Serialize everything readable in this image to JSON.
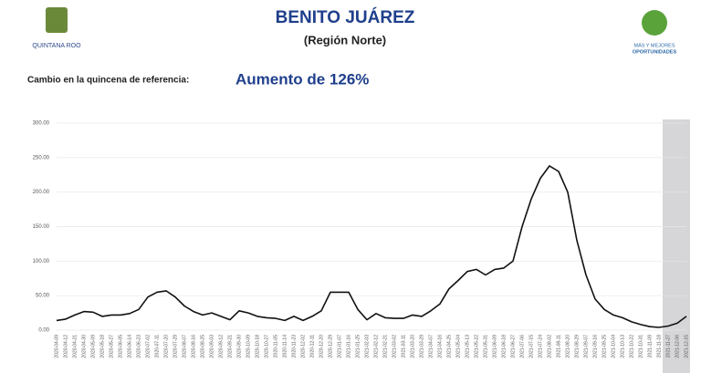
{
  "header": {
    "left_logo_text": "QUINTANA ROO",
    "right_logo_text_1": "MÁS Y MEJORES",
    "right_logo_text_2": "OPORTUNIDADES"
  },
  "chart_data": {
    "type": "line",
    "title": "BENITO JUÁREZ",
    "subtitle": "(Región Norte)",
    "annotation_label": "Cambio en la quincena de referencia:",
    "annotation_value": "Aumento de 126%",
    "categories": [
      "2020-04-09",
      "2020-04-12",
      "2020-04-21",
      "2020-04-30",
      "2020-05-09",
      "2020-05-18",
      "2020-05-27",
      "2020-06-05",
      "2020-06-14",
      "2020-06-23",
      "2020-07-02",
      "2020-07-11",
      "2020-07-20",
      "2020-07-29",
      "2020-08-07",
      "2020-08-16",
      "2020-08-25",
      "2020-09-03",
      "2020-09-12",
      "2020-09-21",
      "2020-09-30",
      "2020-10-09",
      "2020-10-18",
      "2020-10-27",
      "2020-11-05",
      "2020-11-14",
      "2020-11-23",
      "2020-12-02",
      "2020-12-11",
      "2020-12-20",
      "2020-12-29",
      "2021-01-07",
      "2021-01-16",
      "2021-01-25",
      "2021-02-03",
      "2021-02-12",
      "2021-02-21",
      "2021-03-02",
      "2021-03-11",
      "2021-03-20",
      "2021-03-29",
      "2021-04-07",
      "2021-04-16",
      "2021-04-25",
      "2021-05-04",
      "2021-05-13",
      "2021-05-22",
      "2021-05-31",
      "2021-06-09",
      "2021-06-18",
      "2021-06-27",
      "2021-07-06",
      "2021-07-15",
      "2021-07-24",
      "2021-08-02",
      "2021-08-11",
      "2021-08-20",
      "2021-08-29",
      "2021-09-07",
      "2021-09-16",
      "2021-09-25",
      "2021-10-04",
      "2021-10-13",
      "2021-10-22",
      "2021-10-31",
      "2021-11-09",
      "2021-11-18",
      "2021-11-27",
      "2021-12-06",
      "2021-12-15"
    ],
    "values": [
      14,
      16,
      22,
      27,
      26,
      20,
      22,
      22,
      24,
      30,
      48,
      55,
      57,
      48,
      35,
      27,
      22,
      25,
      20,
      15,
      28,
      25,
      20,
      18,
      17,
      14,
      20,
      14,
      20,
      28,
      55,
      55,
      55,
      30,
      15,
      24,
      18,
      17,
      17,
      22,
      20,
      28,
      38,
      60,
      72,
      85,
      88,
      80,
      88,
      90,
      100,
      150,
      190,
      220,
      238,
      230,
      200,
      130,
      80,
      45,
      30,
      22,
      18,
      12,
      8,
      5,
      4,
      6,
      10,
      20
    ],
    "color": "#111111",
    "ylim": [
      0,
      300
    ],
    "yticks": [
      {
        "value": 0,
        "label": "0.00"
      },
      {
        "value": 50,
        "label": "50.00"
      },
      {
        "value": 100,
        "label": "100.00"
      },
      {
        "value": 150,
        "label": "150.00"
      },
      {
        "value": 200,
        "label": "200.00"
      },
      {
        "value": 250,
        "label": "250.00"
      },
      {
        "value": 300,
        "label": "300.00"
      }
    ],
    "grid": true
  }
}
